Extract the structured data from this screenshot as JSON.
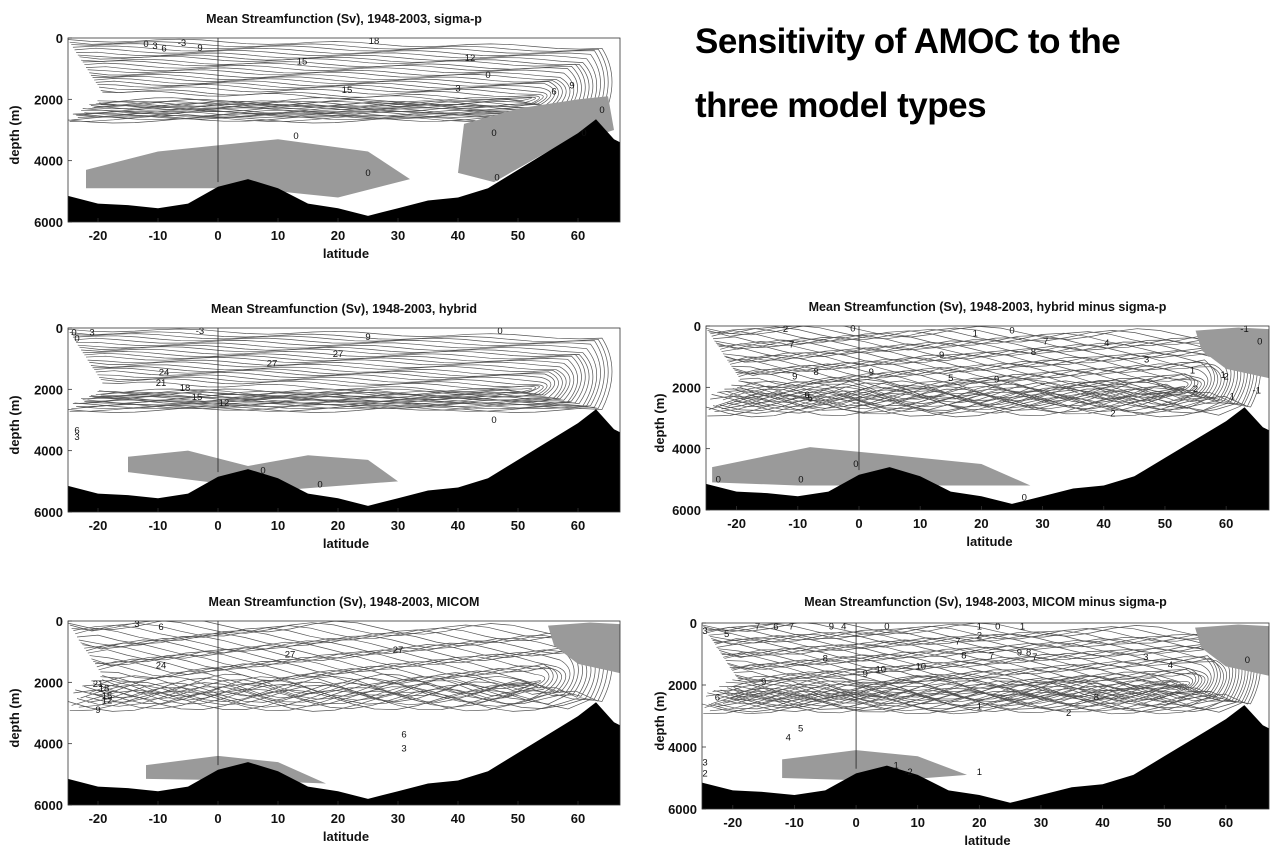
{
  "headline": {
    "line1": "Sensitivity of AMOC to the",
    "line2": "three model types"
  },
  "chart_data": [
    {
      "type": "contour",
      "title": "Mean Streamfunction (Sv), 1948-2003, sigma-p",
      "xlabel": "latitude",
      "ylabel": "depth (m)",
      "xticks": [
        -20,
        -10,
        0,
        10,
        20,
        30,
        40,
        50,
        60
      ],
      "yticks": [
        0,
        2000,
        4000,
        6000
      ],
      "xlim": [
        -25,
        67
      ],
      "ylim": [
        6000,
        0
      ],
      "contour_labels": [
        "0",
        "3",
        "6",
        "-3",
        "9",
        "18",
        "15",
        "15",
        "12",
        "0",
        "3",
        "6",
        "9",
        "0",
        "0",
        "0",
        "0",
        "0",
        "0"
      ],
      "bathymetry": [
        [
          -25,
          5150
        ],
        [
          -20,
          5400
        ],
        [
          -15,
          5450
        ],
        [
          -10,
          5550
        ],
        [
          -5,
          5400
        ],
        [
          0,
          4850
        ],
        [
          5,
          4600
        ],
        [
          10,
          4900
        ],
        [
          15,
          5400
        ],
        [
          20,
          5550
        ],
        [
          25,
          5800
        ],
        [
          30,
          5550
        ],
        [
          35,
          5300
        ],
        [
          40,
          5200
        ],
        [
          45,
          4900
        ],
        [
          50,
          4300
        ],
        [
          55,
          3700
        ],
        [
          60,
          3100
        ],
        [
          63,
          2650
        ],
        [
          66,
          3300
        ],
        [
          67,
          3400
        ]
      ],
      "labels_at": [
        [
          -12,
          200
        ],
        [
          -10.5,
          260
        ],
        [
          -9,
          350
        ],
        [
          -6,
          170
        ],
        [
          -3,
          320
        ],
        [
          26,
          100
        ],
        [
          14,
          770
        ],
        [
          21.5,
          1700
        ],
        [
          42,
          650
        ],
        [
          45,
          1200
        ],
        [
          40,
          1650
        ],
        [
          56,
          1750
        ],
        [
          59,
          1550
        ],
        [
          13,
          3200
        ],
        [
          25,
          4400
        ],
        [
          46,
          3100
        ],
        [
          46.5,
          4550
        ],
        [
          64,
          2350
        ],
        [
          61,
          3100
        ]
      ]
    },
    {
      "type": "contour",
      "title": "Mean Streamfunction (Sv), 1948-2003, hybrid",
      "xlabel": "latitude",
      "ylabel": "depth (m)",
      "xticks": [
        -20,
        -10,
        0,
        10,
        20,
        30,
        40,
        50,
        60
      ],
      "yticks": [
        0,
        2000,
        4000,
        6000
      ],
      "xlim": [
        -25,
        67
      ],
      "ylim": [
        6000,
        0
      ],
      "contour_labels": [
        "0",
        "0",
        "3",
        "-3",
        "0",
        "9",
        "27",
        "27",
        "24",
        "21",
        "18",
        "15",
        "12",
        "6",
        "3",
        "0",
        "0",
        "0"
      ],
      "bathymetry": [
        [
          -25,
          5150
        ],
        [
          -20,
          5400
        ],
        [
          -15,
          5450
        ],
        [
          -10,
          5550
        ],
        [
          -5,
          5400
        ],
        [
          0,
          4850
        ],
        [
          5,
          4600
        ],
        [
          10,
          4900
        ],
        [
          15,
          5400
        ],
        [
          20,
          5550
        ],
        [
          25,
          5800
        ],
        [
          30,
          5550
        ],
        [
          35,
          5300
        ],
        [
          40,
          5200
        ],
        [
          45,
          4900
        ],
        [
          50,
          4300
        ],
        [
          55,
          3700
        ],
        [
          60,
          3100
        ],
        [
          63,
          2650
        ],
        [
          66,
          3300
        ],
        [
          67,
          3400
        ]
      ],
      "labels_at": [
        [
          -24,
          150
        ],
        [
          -23.5,
          350
        ],
        [
          -21,
          150
        ],
        [
          -3,
          100
        ],
        [
          47,
          100
        ],
        [
          25,
          300
        ],
        [
          9,
          1150
        ],
        [
          20,
          850
        ],
        [
          -9,
          1450
        ],
        [
          -9.5,
          1800
        ],
        [
          -5.5,
          1950
        ],
        [
          -3.5,
          2250
        ],
        [
          1,
          2450
        ],
        [
          -23.5,
          3350
        ],
        [
          -23.5,
          3550
        ],
        [
          46,
          3000
        ],
        [
          7.5,
          4650
        ],
        [
          17,
          5100
        ]
      ]
    },
    {
      "type": "contour",
      "title": "Mean Streamfunction (Sv), 1948-2003, hybrid minus sigma-p",
      "xlabel": "latitude",
      "ylabel": "depth (m)",
      "xticks": [
        -20,
        -10,
        0,
        10,
        20,
        30,
        40,
        50,
        60
      ],
      "yticks": [
        0,
        2000,
        4000,
        6000
      ],
      "xlim": [
        -25,
        67
      ],
      "ylim": [
        6000,
        0
      ],
      "contour_labels": [
        "2",
        "7",
        "0",
        "1",
        "0",
        "-1",
        "9",
        "9",
        "8",
        "9",
        "6",
        "5",
        "5",
        "9",
        "8",
        "7",
        "4",
        "3",
        "1",
        "2",
        "1",
        "2",
        "1",
        "2",
        "0",
        "0",
        "0",
        "0",
        "-1",
        "0"
      ],
      "bathymetry": [
        [
          -25,
          5150
        ],
        [
          -20,
          5400
        ],
        [
          -15,
          5450
        ],
        [
          -10,
          5550
        ],
        [
          -5,
          5400
        ],
        [
          0,
          4850
        ],
        [
          5,
          4600
        ],
        [
          10,
          4900
        ],
        [
          15,
          5400
        ],
        [
          20,
          5550
        ],
        [
          25,
          5800
        ],
        [
          30,
          5550
        ],
        [
          35,
          5300
        ],
        [
          40,
          5200
        ],
        [
          45,
          4900
        ],
        [
          50,
          4300
        ],
        [
          55,
          3700
        ],
        [
          60,
          3100
        ],
        [
          63,
          2650
        ],
        [
          66,
          3300
        ],
        [
          67,
          3400
        ]
      ],
      "labels_at": [
        [
          -12,
          100
        ],
        [
          -11,
          600
        ],
        [
          -1,
          80
        ],
        [
          19,
          250
        ],
        [
          25,
          150
        ],
        [
          63,
          100
        ],
        [
          -10.5,
          1650
        ],
        [
          2,
          1500
        ],
        [
          -7,
          1500
        ],
        [
          13.5,
          950
        ],
        [
          -8.5,
          2250
        ],
        [
          -8,
          2350
        ],
        [
          15,
          1700
        ],
        [
          22.5,
          1750
        ],
        [
          28.5,
          850
        ],
        [
          30.5,
          500
        ],
        [
          40.5,
          550
        ],
        [
          47,
          1100
        ],
        [
          54.5,
          1450
        ],
        [
          55,
          2050
        ],
        [
          59.5,
          1600
        ],
        [
          60,
          1650
        ],
        [
          61,
          2300
        ],
        [
          41.5,
          2850
        ],
        [
          -23,
          5000
        ],
        [
          -9.5,
          5000
        ],
        [
          -0.5,
          4500
        ],
        [
          27,
          5600
        ],
        [
          65,
          2100
        ],
        [
          65.5,
          500
        ]
      ]
    },
    {
      "type": "contour",
      "title": "Mean Streamfunction (Sv), 1948-2003, MICOM",
      "xlabel": "latitude",
      "ylabel": "depth (m)",
      "xticks": [
        -20,
        -10,
        0,
        10,
        20,
        30,
        40,
        50,
        60
      ],
      "yticks": [
        0,
        2000,
        4000,
        6000
      ],
      "xlim": [
        -25,
        67
      ],
      "ylim": [
        6000,
        0
      ],
      "contour_labels": [
        "3",
        "6",
        "24",
        "27",
        "27",
        "21",
        "18",
        "15",
        "12",
        "9",
        "6",
        "3"
      ],
      "bathymetry": [
        [
          -25,
          5150
        ],
        [
          -20,
          5400
        ],
        [
          -15,
          5450
        ],
        [
          -10,
          5550
        ],
        [
          -5,
          5400
        ],
        [
          0,
          4850
        ],
        [
          5,
          4600
        ],
        [
          10,
          4900
        ],
        [
          15,
          5400
        ],
        [
          20,
          5550
        ],
        [
          25,
          5800
        ],
        [
          30,
          5550
        ],
        [
          35,
          5300
        ],
        [
          40,
          5200
        ],
        [
          45,
          4900
        ],
        [
          50,
          4300
        ],
        [
          55,
          3700
        ],
        [
          60,
          3100
        ],
        [
          63,
          2650
        ],
        [
          66,
          3300
        ],
        [
          67,
          3400
        ]
      ],
      "labels_at": [
        [
          -13.5,
          100
        ],
        [
          -9.5,
          200
        ],
        [
          -9.5,
          1450
        ],
        [
          12,
          1100
        ],
        [
          30,
          950
        ],
        [
          -20,
          2050
        ],
        [
          -19,
          2200
        ],
        [
          -18.5,
          2450
        ],
        [
          -18.5,
          2600
        ],
        [
          -20,
          2900
        ],
        [
          31,
          3700
        ],
        [
          31,
          4150
        ]
      ]
    },
    {
      "type": "contour",
      "title": "Mean Streamfunction (Sv), 1948-2003, MICOM minus sigma-p",
      "xlabel": "latitude",
      "ylabel": "depth (m)",
      "xticks": [
        -20,
        -10,
        0,
        10,
        20,
        30,
        40,
        50,
        60
      ],
      "yticks": [
        0,
        2000,
        4000,
        6000
      ],
      "xlim": [
        -25,
        67
      ],
      "ylim": [
        6000,
        0
      ],
      "contour_labels": [
        "3",
        "5",
        "7",
        "6",
        "7",
        "9",
        "4",
        "0",
        "1",
        "0",
        "1",
        "2",
        "8",
        "10",
        "10",
        "9",
        "9",
        "7",
        "8",
        "7",
        "9",
        "8",
        "7",
        "1",
        "8",
        "2",
        "3",
        "4",
        "1",
        "6",
        "5",
        "4",
        "3",
        "2",
        "1",
        "-2",
        "0"
      ],
      "bathymetry": [
        [
          -25,
          5150
        ],
        [
          -20,
          5400
        ],
        [
          -15,
          5450
        ],
        [
          -10,
          5550
        ],
        [
          -5,
          5400
        ],
        [
          0,
          4850
        ],
        [
          5,
          4600
        ],
        [
          10,
          4900
        ],
        [
          15,
          5400
        ],
        [
          20,
          5550
        ],
        [
          25,
          5800
        ],
        [
          30,
          5550
        ],
        [
          35,
          5300
        ],
        [
          40,
          5200
        ],
        [
          45,
          4900
        ],
        [
          50,
          4300
        ],
        [
          55,
          3700
        ],
        [
          60,
          3100
        ],
        [
          63,
          2650
        ],
        [
          66,
          3300
        ],
        [
          67,
          3400
        ]
      ],
      "labels_at": [
        [
          -24.5,
          250
        ],
        [
          -21,
          350
        ],
        [
          -16,
          120
        ],
        [
          -13,
          120
        ],
        [
          -10.5,
          120
        ],
        [
          -4,
          120
        ],
        [
          -2,
          120
        ],
        [
          5,
          120
        ],
        [
          20,
          120
        ],
        [
          23,
          120
        ],
        [
          27,
          120
        ],
        [
          20,
          400
        ],
        [
          -5,
          1150
        ],
        [
          4,
          1500
        ],
        [
          10.5,
          1400
        ],
        [
          -15,
          1900
        ],
        [
          1.5,
          1650
        ],
        [
          16.5,
          600
        ],
        [
          17.5,
          1050
        ],
        [
          22,
          1050
        ],
        [
          26.5,
          950
        ],
        [
          28,
          950
        ],
        [
          29,
          1100
        ],
        [
          20,
          2700
        ],
        [
          39,
          2400
        ],
        [
          34.5,
          2900
        ],
        [
          47,
          1100
        ],
        [
          51,
          1350
        ],
        [
          20,
          4800
        ],
        [
          -22.5,
          2400
        ],
        [
          -9,
          3400
        ],
        [
          -11,
          3700
        ],
        [
          -24.5,
          4500
        ],
        [
          -24.5,
          4850
        ],
        [
          6.5,
          4600
        ],
        [
          8.5,
          4800
        ],
        [
          63.5,
          1200
        ]
      ]
    }
  ]
}
